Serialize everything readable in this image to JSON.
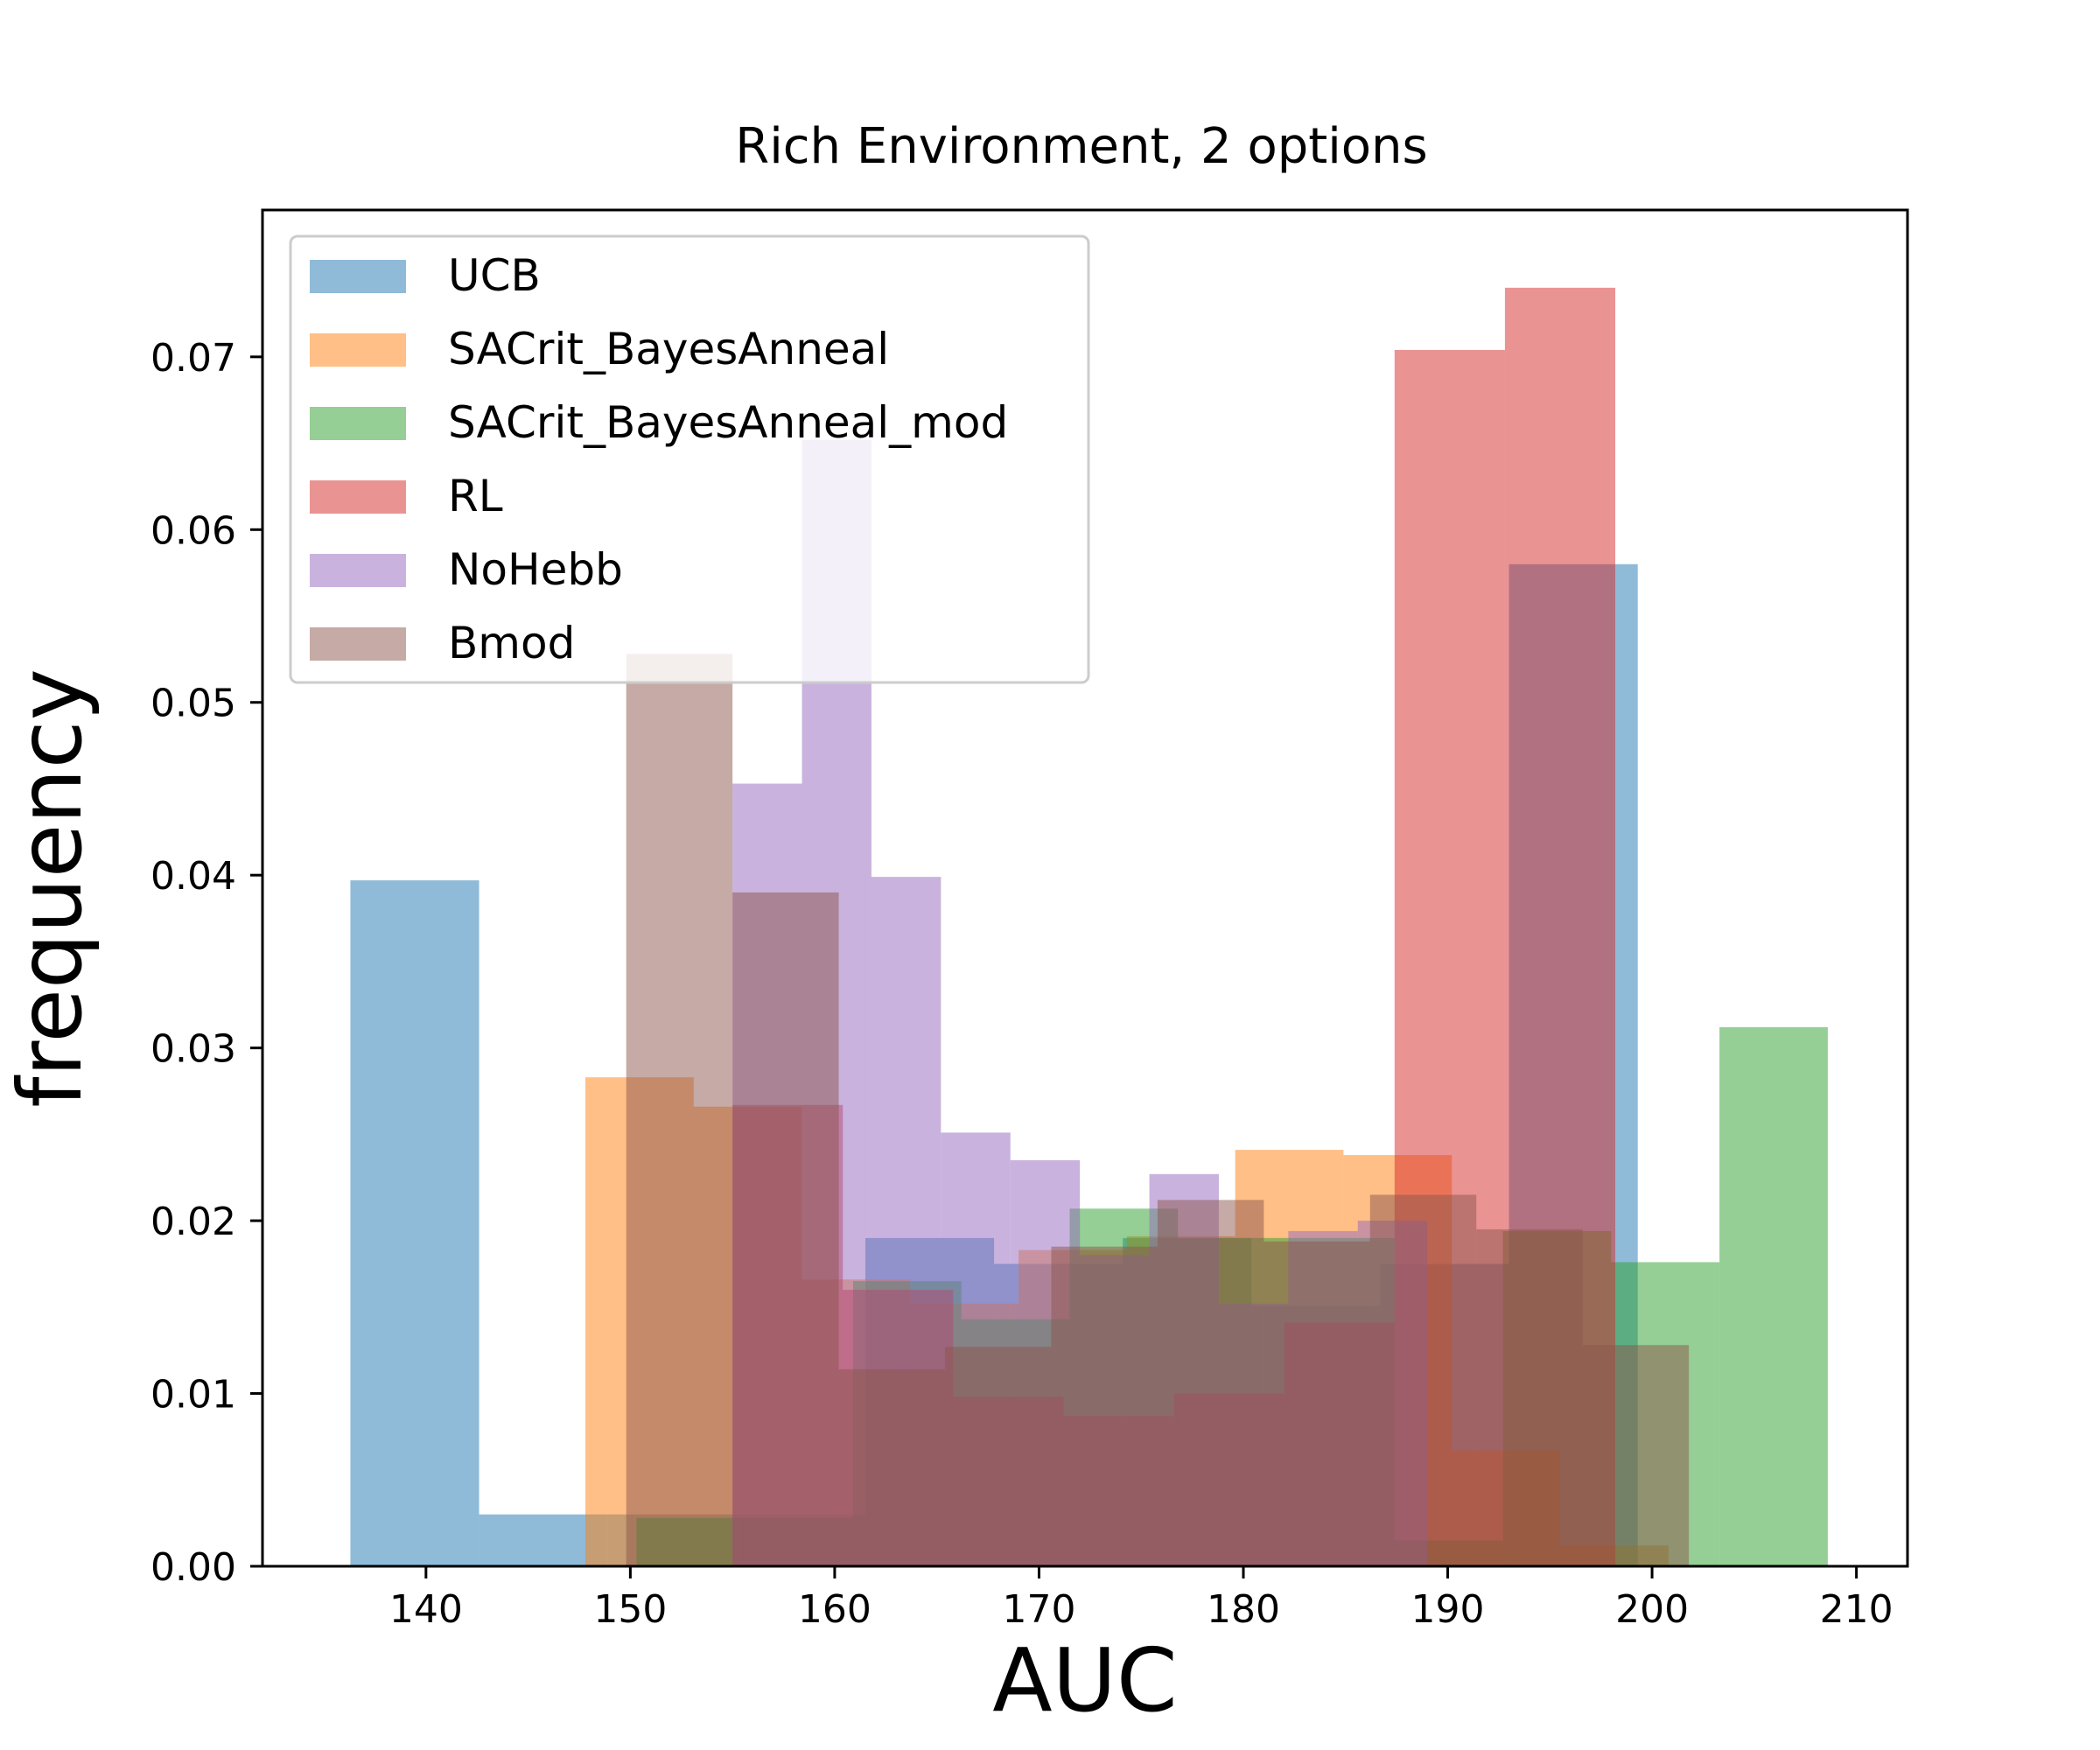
{
  "chart_data": {
    "type": "histogram",
    "title": "Rich Environment, 2 options",
    "xlabel": "AUC",
    "ylabel": "frequency",
    "xlim": [
      132,
      212.5
    ],
    "ylim": [
      0,
      0.0785
    ],
    "xticks": [
      140,
      150,
      160,
      170,
      180,
      190,
      200,
      210
    ],
    "yticks": [
      0.0,
      0.01,
      0.02,
      0.03,
      0.04,
      0.05,
      0.06,
      0.07
    ],
    "ytick_labels": [
      "0.00",
      "0.01",
      "0.02",
      "0.03",
      "0.04",
      "0.05",
      "0.06",
      "0.07"
    ],
    "legend_position": "upper-left",
    "alpha": 0.5,
    "series": [
      {
        "name": "UCB",
        "color": "#1f77b4",
        "bin_edges": [
          136.3,
          142.6,
          148.9,
          155.2,
          161.5,
          167.8,
          174.1,
          180.4,
          186.7,
          193.0,
          199.3
        ],
        "values": [
          0.0397,
          0.003,
          0.003,
          0.003,
          0.019,
          0.0175,
          0.019,
          0.0151,
          0.0175,
          0.058
        ]
      },
      {
        "name": "SACrit_BayesAnneal",
        "color": "#ff7f0e",
        "bin_edges": [
          147.8,
          153.1,
          158.4,
          163.7,
          169.0,
          174.3,
          179.6,
          184.9,
          190.2,
          195.5,
          200.8
        ],
        "values": [
          0.0283,
          0.0266,
          0.0166,
          0.0152,
          0.0183,
          0.0191,
          0.0241,
          0.0238,
          0.0067,
          0.0012
        ]
      },
      {
        "name": "SACrit_BayesAnneal_mod",
        "color": "#2ca02c",
        "bin_edges": [
          150.3,
          155.6,
          160.9,
          166.2,
          171.5,
          176.8,
          182.1,
          187.4,
          192.7,
          198.0,
          203.3,
          208.6
        ],
        "values": [
          0.0028,
          0.0028,
          0.0165,
          0.0143,
          0.0207,
          0.019,
          0.019,
          0.0015,
          0.0194,
          0.0176,
          0.0312
        ]
      },
      {
        "name": "RL",
        "color": "#d62728",
        "bin_edges": [
          155.0,
          160.4,
          165.8,
          171.2,
          176.6,
          182.0,
          187.4,
          192.8,
          198.2
        ],
        "values": [
          0.0267,
          0.016,
          0.0098,
          0.0087,
          0.01,
          0.0141,
          0.0704,
          0.074,
          0.0046
        ]
      },
      {
        "name": "NoHebb",
        "color": "#9467bd",
        "bin_edges": [
          155.0,
          158.4,
          161.8,
          165.2,
          168.6,
          172.0,
          175.4,
          178.8,
          182.2,
          185.6,
          189.0
        ],
        "values": [
          0.0453,
          0.0652,
          0.0399,
          0.0251,
          0.0235,
          0.018,
          0.0227,
          0.0152,
          0.0194,
          0.02
        ]
      },
      {
        "name": "Bmod",
        "color": "#8c564b",
        "bin_edges": [
          149.8,
          155.0,
          160.2,
          165.4,
          170.6,
          175.8,
          181.0,
          186.2,
          191.4,
          196.6,
          201.8
        ],
        "values": [
          0.0528,
          0.039,
          0.0114,
          0.0127,
          0.0185,
          0.0212,
          0.0188,
          0.0215,
          0.0195,
          0.0128
        ]
      }
    ]
  }
}
